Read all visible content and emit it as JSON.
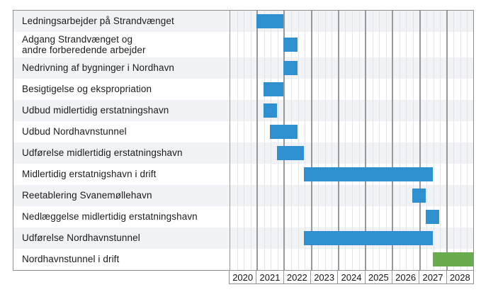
{
  "chart_data": {
    "type": "bar",
    "subtype": "gantt",
    "title": "",
    "x_axis": {
      "tick_labels": [
        "2020",
        "2021",
        "2022",
        "2023",
        "2024",
        "2025",
        "2026",
        "2027",
        "2028"
      ],
      "range": [
        2020,
        2029
      ],
      "minor_divisions_per_year": 4,
      "grid": true
    },
    "legend": null,
    "tasks": [
      {
        "label": "Ledningsarbejder på Strandvænget",
        "start": 2021.0,
        "end": 2022.0,
        "color": "#2e90ce"
      },
      {
        "label": "Adgang Strandvænget og\nandre forberedende arbejder",
        "start": 2022.0,
        "end": 2022.5,
        "color": "#2e90ce"
      },
      {
        "label": "Nedrivning af bygninger i Nordhavn",
        "start": 2022.0,
        "end": 2022.5,
        "color": "#2e90ce"
      },
      {
        "label": "Besigtigelse og ekspropriation",
        "start": 2021.25,
        "end": 2022.0,
        "color": "#2e90ce"
      },
      {
        "label": "Udbud midlertidig erstatningshavn",
        "start": 2021.25,
        "end": 2021.75,
        "color": "#2e90ce"
      },
      {
        "label": "Udbud Nordhavnstunnel",
        "start": 2021.5,
        "end": 2022.5,
        "color": "#2e90ce"
      },
      {
        "label": "Udførelse midlertidig erstatningshavn",
        "start": 2021.75,
        "end": 2022.75,
        "color": "#2e90ce"
      },
      {
        "label": "Midlertidig erstatnigshavn i drift",
        "start": 2022.75,
        "end": 2027.5,
        "color": "#2e90ce"
      },
      {
        "label": "Reetablering Svanemøllehavn",
        "start": 2026.75,
        "end": 2027.25,
        "color": "#2e90ce"
      },
      {
        "label": "Nedlæggelse midlertidig erstatningshavn",
        "start": 2027.25,
        "end": 2027.75,
        "color": "#2e90ce"
      },
      {
        "label": "Udførelse Nordhavnstunnel",
        "start": 2022.75,
        "end": 2027.5,
        "color": "#2e90ce"
      },
      {
        "label": "Nordhavnstunnel i drift",
        "start": 2027.5,
        "end": 2029.0,
        "color": "#6aab4e"
      }
    ],
    "colors": {
      "bar_blue": "#2e90ce",
      "bar_green": "#6aab4e",
      "row_stripe": "#f1f2f5",
      "grid_major": "#98989d",
      "grid_minor": "#e3e3e9",
      "border": "#8f8f94",
      "text": "#1b1b1d"
    }
  }
}
